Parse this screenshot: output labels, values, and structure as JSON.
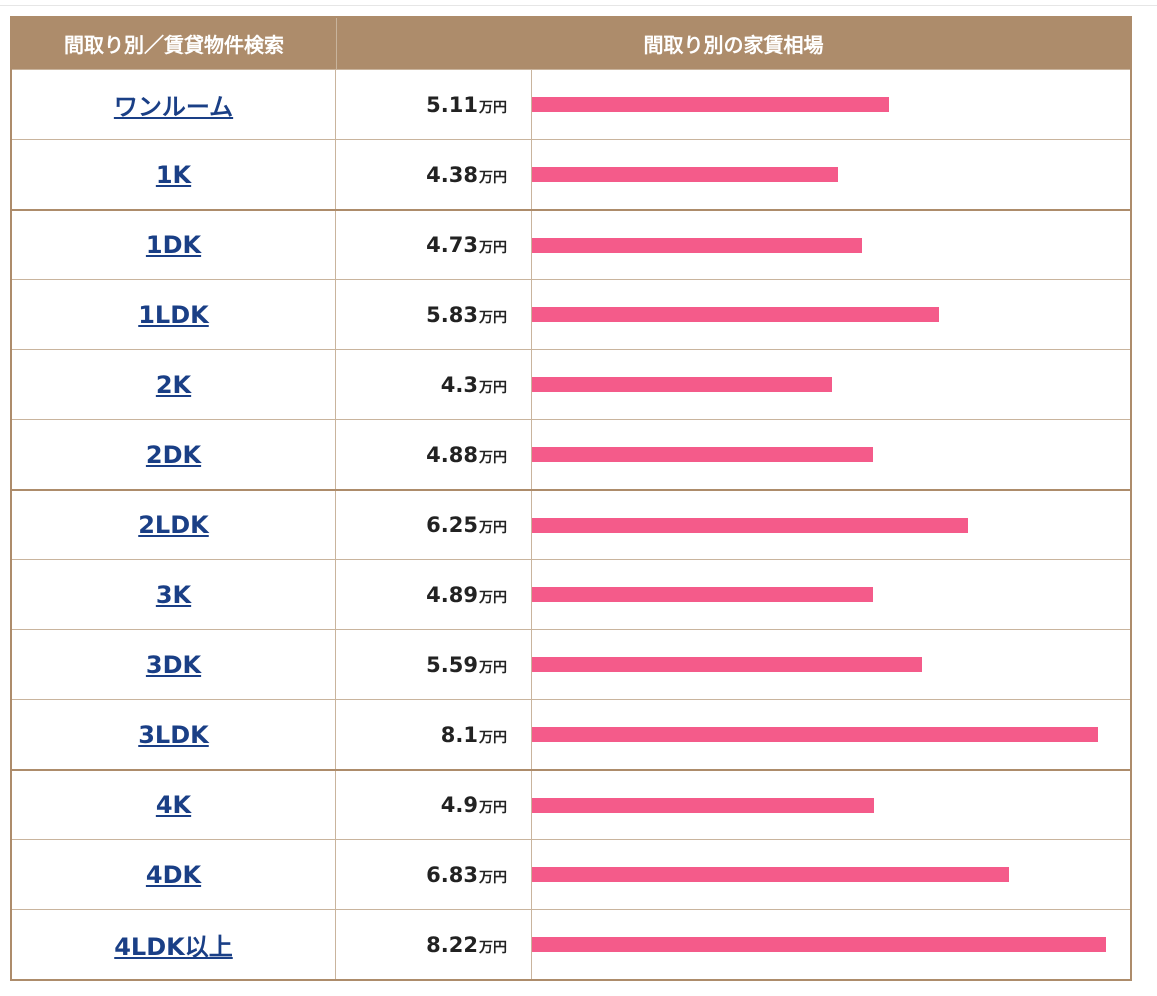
{
  "header": {
    "left": "間取り別／賃貸物件検索",
    "right": "間取り別の家賃相場"
  },
  "unit": "万円",
  "colors": {
    "header_bg": "#ad8c6b",
    "bar": "#f45b8a",
    "link": "#1a3f86"
  },
  "chart_data": {
    "type": "bar",
    "orientation": "horizontal",
    "categories": [
      "ワンルーム",
      "1K",
      "1DK",
      "1LDK",
      "2K",
      "2DK",
      "2LDK",
      "3K",
      "3DK",
      "3LDK",
      "4K",
      "4DK",
      "4LDK以上"
    ],
    "values": [
      5.11,
      4.38,
      4.73,
      5.83,
      4.3,
      4.88,
      6.25,
      4.89,
      5.59,
      8.1,
      4.9,
      6.83,
      8.22
    ],
    "value_labels": [
      "5.11",
      "4.38",
      "4.73",
      "5.83",
      "4.3",
      "4.88",
      "6.25",
      "4.89",
      "5.59",
      "8.1",
      "4.9",
      "6.83",
      "8.22"
    ],
    "unit": "万円",
    "xlim": [
      0,
      8.22
    ]
  }
}
